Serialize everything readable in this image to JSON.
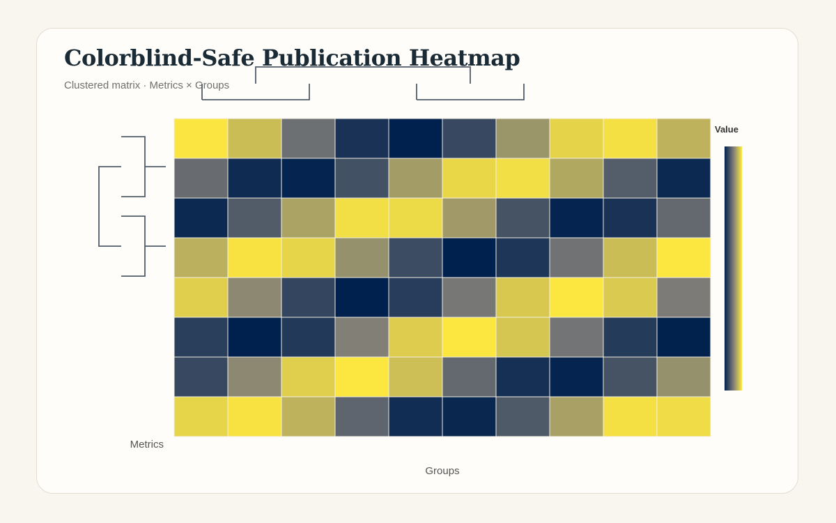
{
  "title": "Colorblind-Safe Publication Heatmap",
  "subtitle": "Clustered matrix · Metrics × Groups",
  "colors": {
    "low": "#00204d",
    "mid": "#7c7b78",
    "high": "#ffe93f",
    "dendrogram": "#4f5b68",
    "cell_border": "#f2efe4"
  },
  "chart_data": {
    "type": "heatmap",
    "title": "Colorblind-Safe Publication Heatmap",
    "subtitle": "Clustered matrix · Metrics × Groups",
    "xlabel": "Groups",
    "ylabel": "Metrics",
    "colorbar_title": "Value",
    "colorscale": "cividis",
    "value_range": [
      0,
      1
    ],
    "rows": 8,
    "cols": 10,
    "values": [
      [
        0.98,
        0.8,
        0.44,
        0.1,
        0.0,
        0.22,
        0.62,
        0.9,
        0.96,
        0.75
      ],
      [
        0.42,
        0.06,
        0.02,
        0.27,
        0.65,
        0.92,
        0.95,
        0.7,
        0.34,
        0.05
      ],
      [
        0.05,
        0.33,
        0.68,
        0.95,
        0.93,
        0.64,
        0.28,
        0.02,
        0.1,
        0.4
      ],
      [
        0.74,
        0.97,
        0.91,
        0.6,
        0.24,
        0.0,
        0.12,
        0.45,
        0.8,
        0.99
      ],
      [
        0.88,
        0.56,
        0.21,
        0.0,
        0.16,
        0.48,
        0.85,
        0.99,
        0.86,
        0.5
      ],
      [
        0.17,
        0.0,
        0.14,
        0.52,
        0.87,
        0.99,
        0.84,
        0.46,
        0.15,
        0.01
      ],
      [
        0.22,
        0.56,
        0.88,
        0.99,
        0.81,
        0.4,
        0.09,
        0.02,
        0.28,
        0.6
      ],
      [
        0.91,
        0.97,
        0.75,
        0.38,
        0.07,
        0.04,
        0.32,
        0.67,
        0.96,
        0.94
      ]
    ]
  }
}
